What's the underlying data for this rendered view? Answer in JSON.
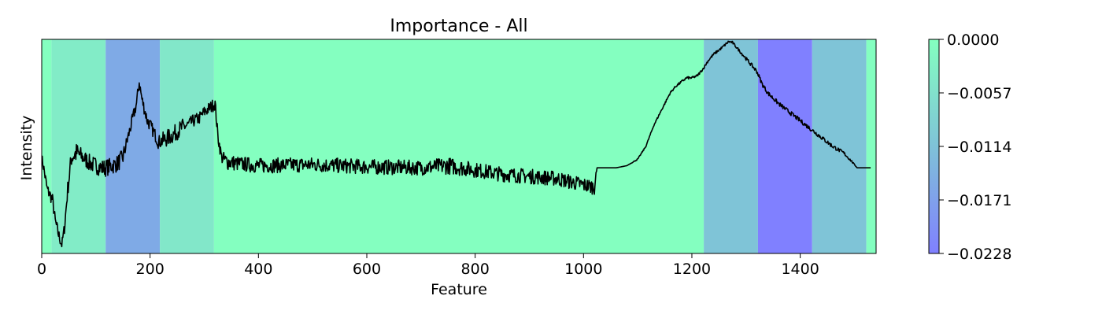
{
  "chart_data": {
    "type": "line",
    "title": "Importance - All",
    "xlabel": "Feature",
    "ylabel": "Intensity",
    "xlim": [
      0,
      1540
    ],
    "ylim": [
      0,
      1
    ],
    "x_ticks": [
      0,
      200,
      400,
      600,
      800,
      1000,
      1200,
      1400
    ],
    "y_ticks_shown": false,
    "grid": false,
    "background_bands": [
      {
        "x_start": 0,
        "x_end": 18,
        "importance": 0.0
      },
      {
        "x_start": 18,
        "x_end": 118,
        "importance": -0.0035
      },
      {
        "x_start": 118,
        "x_end": 218,
        "importance": -0.0155
      },
      {
        "x_start": 218,
        "x_end": 318,
        "importance": -0.0045
      },
      {
        "x_start": 318,
        "x_end": 1222,
        "importance": 0.0
      },
      {
        "x_start": 1222,
        "x_end": 1322,
        "importance": -0.011
      },
      {
        "x_start": 1322,
        "x_end": 1422,
        "importance": -0.0228
      },
      {
        "x_start": 1422,
        "x_end": 1522,
        "importance": -0.011
      },
      {
        "x_start": 1522,
        "x_end": 1540,
        "importance": 0.0
      }
    ],
    "colorbar": {
      "min": -0.0228,
      "max": 0.0,
      "tick_labels": [
        "0.0000",
        "−0.0057",
        "−0.0114",
        "−0.0171",
        "−0.0228"
      ],
      "color_max": "#84ffc0",
      "color_mid": "#7fc2d8",
      "color_min": "#8080ff"
    },
    "series": [
      {
        "color": "#000000",
        "anchors_x": [
          0,
          5,
          10,
          20,
          25,
          32,
          37,
          42,
          48,
          55,
          65,
          75,
          90,
          100,
          110,
          118,
          130,
          140,
          150,
          160,
          165,
          175,
          180,
          185,
          195,
          200,
          210,
          215,
          225,
          240,
          250,
          260,
          270,
          280,
          290,
          300,
          310,
          320,
          325,
          332,
          340,
          360,
          400,
          500,
          600,
          700,
          750,
          800,
          850,
          900,
          950,
          1000,
          1020,
          1025,
          1040,
          1060,
          1080,
          1100,
          1115,
          1130,
          1150,
          1160,
          1170,
          1180,
          1190,
          1200,
          1210,
          1220,
          1230,
          1240,
          1255,
          1268,
          1275,
          1280,
          1290,
          1300,
          1310,
          1320,
          1330,
          1340,
          1360,
          1380,
          1400,
          1420,
          1440,
          1460,
          1480,
          1495,
          1505,
          1520,
          1540
        ],
        "anchors_y": [
          0.45,
          0.38,
          0.3,
          0.25,
          0.15,
          0.08,
          0.04,
          0.12,
          0.3,
          0.45,
          0.47,
          0.45,
          0.42,
          0.41,
          0.4,
          0.4,
          0.41,
          0.42,
          0.45,
          0.55,
          0.6,
          0.7,
          0.8,
          0.72,
          0.62,
          0.6,
          0.55,
          0.52,
          0.53,
          0.55,
          0.57,
          0.59,
          0.6,
          0.62,
          0.63,
          0.66,
          0.68,
          0.7,
          0.55,
          0.45,
          0.43,
          0.42,
          0.41,
          0.415,
          0.405,
          0.4,
          0.41,
          0.39,
          0.37,
          0.36,
          0.35,
          0.32,
          0.31,
          0.4,
          0.4,
          0.4,
          0.41,
          0.44,
          0.5,
          0.6,
          0.7,
          0.75,
          0.78,
          0.8,
          0.82,
          0.82,
          0.83,
          0.86,
          0.9,
          0.93,
          0.96,
          0.99,
          0.985,
          0.97,
          0.94,
          0.91,
          0.88,
          0.85,
          0.79,
          0.75,
          0.7,
          0.66,
          0.62,
          0.58,
          0.54,
          0.5,
          0.47,
          0.43,
          0.4,
          0.4,
          0.4
        ],
        "noise_amplitude": [
          0.02,
          0.03,
          0.03,
          0.03,
          0.03,
          0.03,
          0.02,
          0.03,
          0.04,
          0.05,
          0.05,
          0.04,
          0.04,
          0.04,
          0.04,
          0.04,
          0.04,
          0.04,
          0.04,
          0.03,
          0.03,
          0.03,
          0.03,
          0.03,
          0.03,
          0.03,
          0.03,
          0.03,
          0.04,
          0.04,
          0.04,
          0.04,
          0.03,
          0.03,
          0.03,
          0.03,
          0.03,
          0.03,
          0.03,
          0.03,
          0.04,
          0.035,
          0.035,
          0.035,
          0.035,
          0.035,
          0.04,
          0.035,
          0.035,
          0.035,
          0.035,
          0.035,
          0.035,
          0.0,
          0.0,
          0.0,
          0.0,
          0.003,
          0.003,
          0.004,
          0.005,
          0.005,
          0.005,
          0.006,
          0.006,
          0.006,
          0.006,
          0.006,
          0.006,
          0.006,
          0.006,
          0.006,
          0.006,
          0.006,
          0.007,
          0.008,
          0.009,
          0.01,
          0.01,
          0.01,
          0.01,
          0.01,
          0.01,
          0.01,
          0.01,
          0.01,
          0.008,
          0.005,
          0.0,
          0.0,
          0.0
        ]
      }
    ]
  }
}
